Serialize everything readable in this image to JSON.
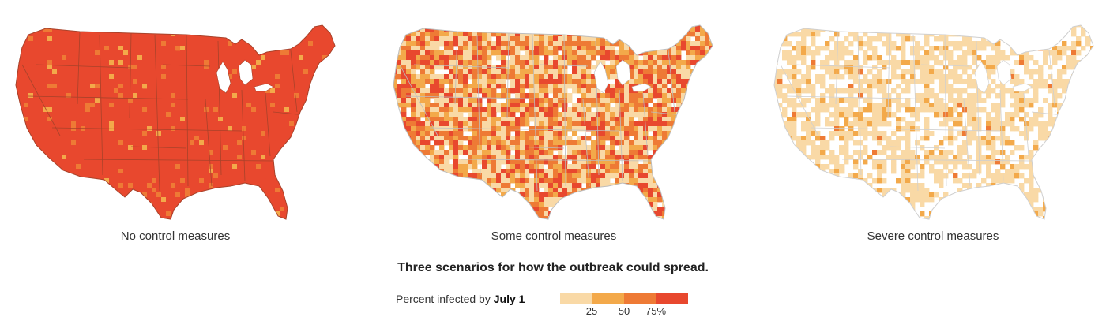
{
  "maps": [
    {
      "caption": "No control measures",
      "scenario_level": "high"
    },
    {
      "caption": "Some control measures",
      "scenario_level": "medium"
    },
    {
      "caption": "Severe control measures",
      "scenario_level": "low"
    }
  ],
  "headline": "Three scenarios for how the outbreak could spread.",
  "legend": {
    "label_prefix": "Percent infected by ",
    "label_bold": "July 1",
    "colors": [
      "#f9d9a6",
      "#f3a94a",
      "#ee7a35",
      "#e8482e"
    ],
    "ticks": [
      "25",
      "50",
      "75%"
    ]
  },
  "colors": {
    "state_border": "#b84a2c",
    "light_border": "#d8d8d8",
    "no_data": "#ffffff"
  }
}
